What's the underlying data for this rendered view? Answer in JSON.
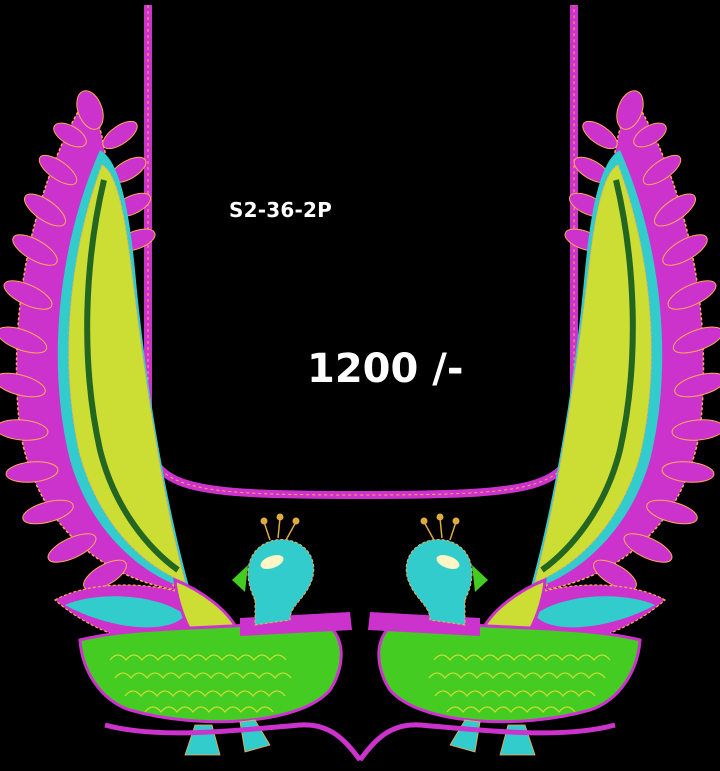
{
  "design": {
    "code": "S2-36-2P",
    "price": "1200 /-"
  },
  "palette": {
    "background": "#000000",
    "magenta": "#cc33cc",
    "magenta_light": "#e05ce0",
    "teal": "#33cccc",
    "yellow_green": "#ccdd33",
    "green": "#44cc22",
    "dark_green": "#226622",
    "orange_stitch": "#ffaa55",
    "gold": "#ddaa44"
  }
}
